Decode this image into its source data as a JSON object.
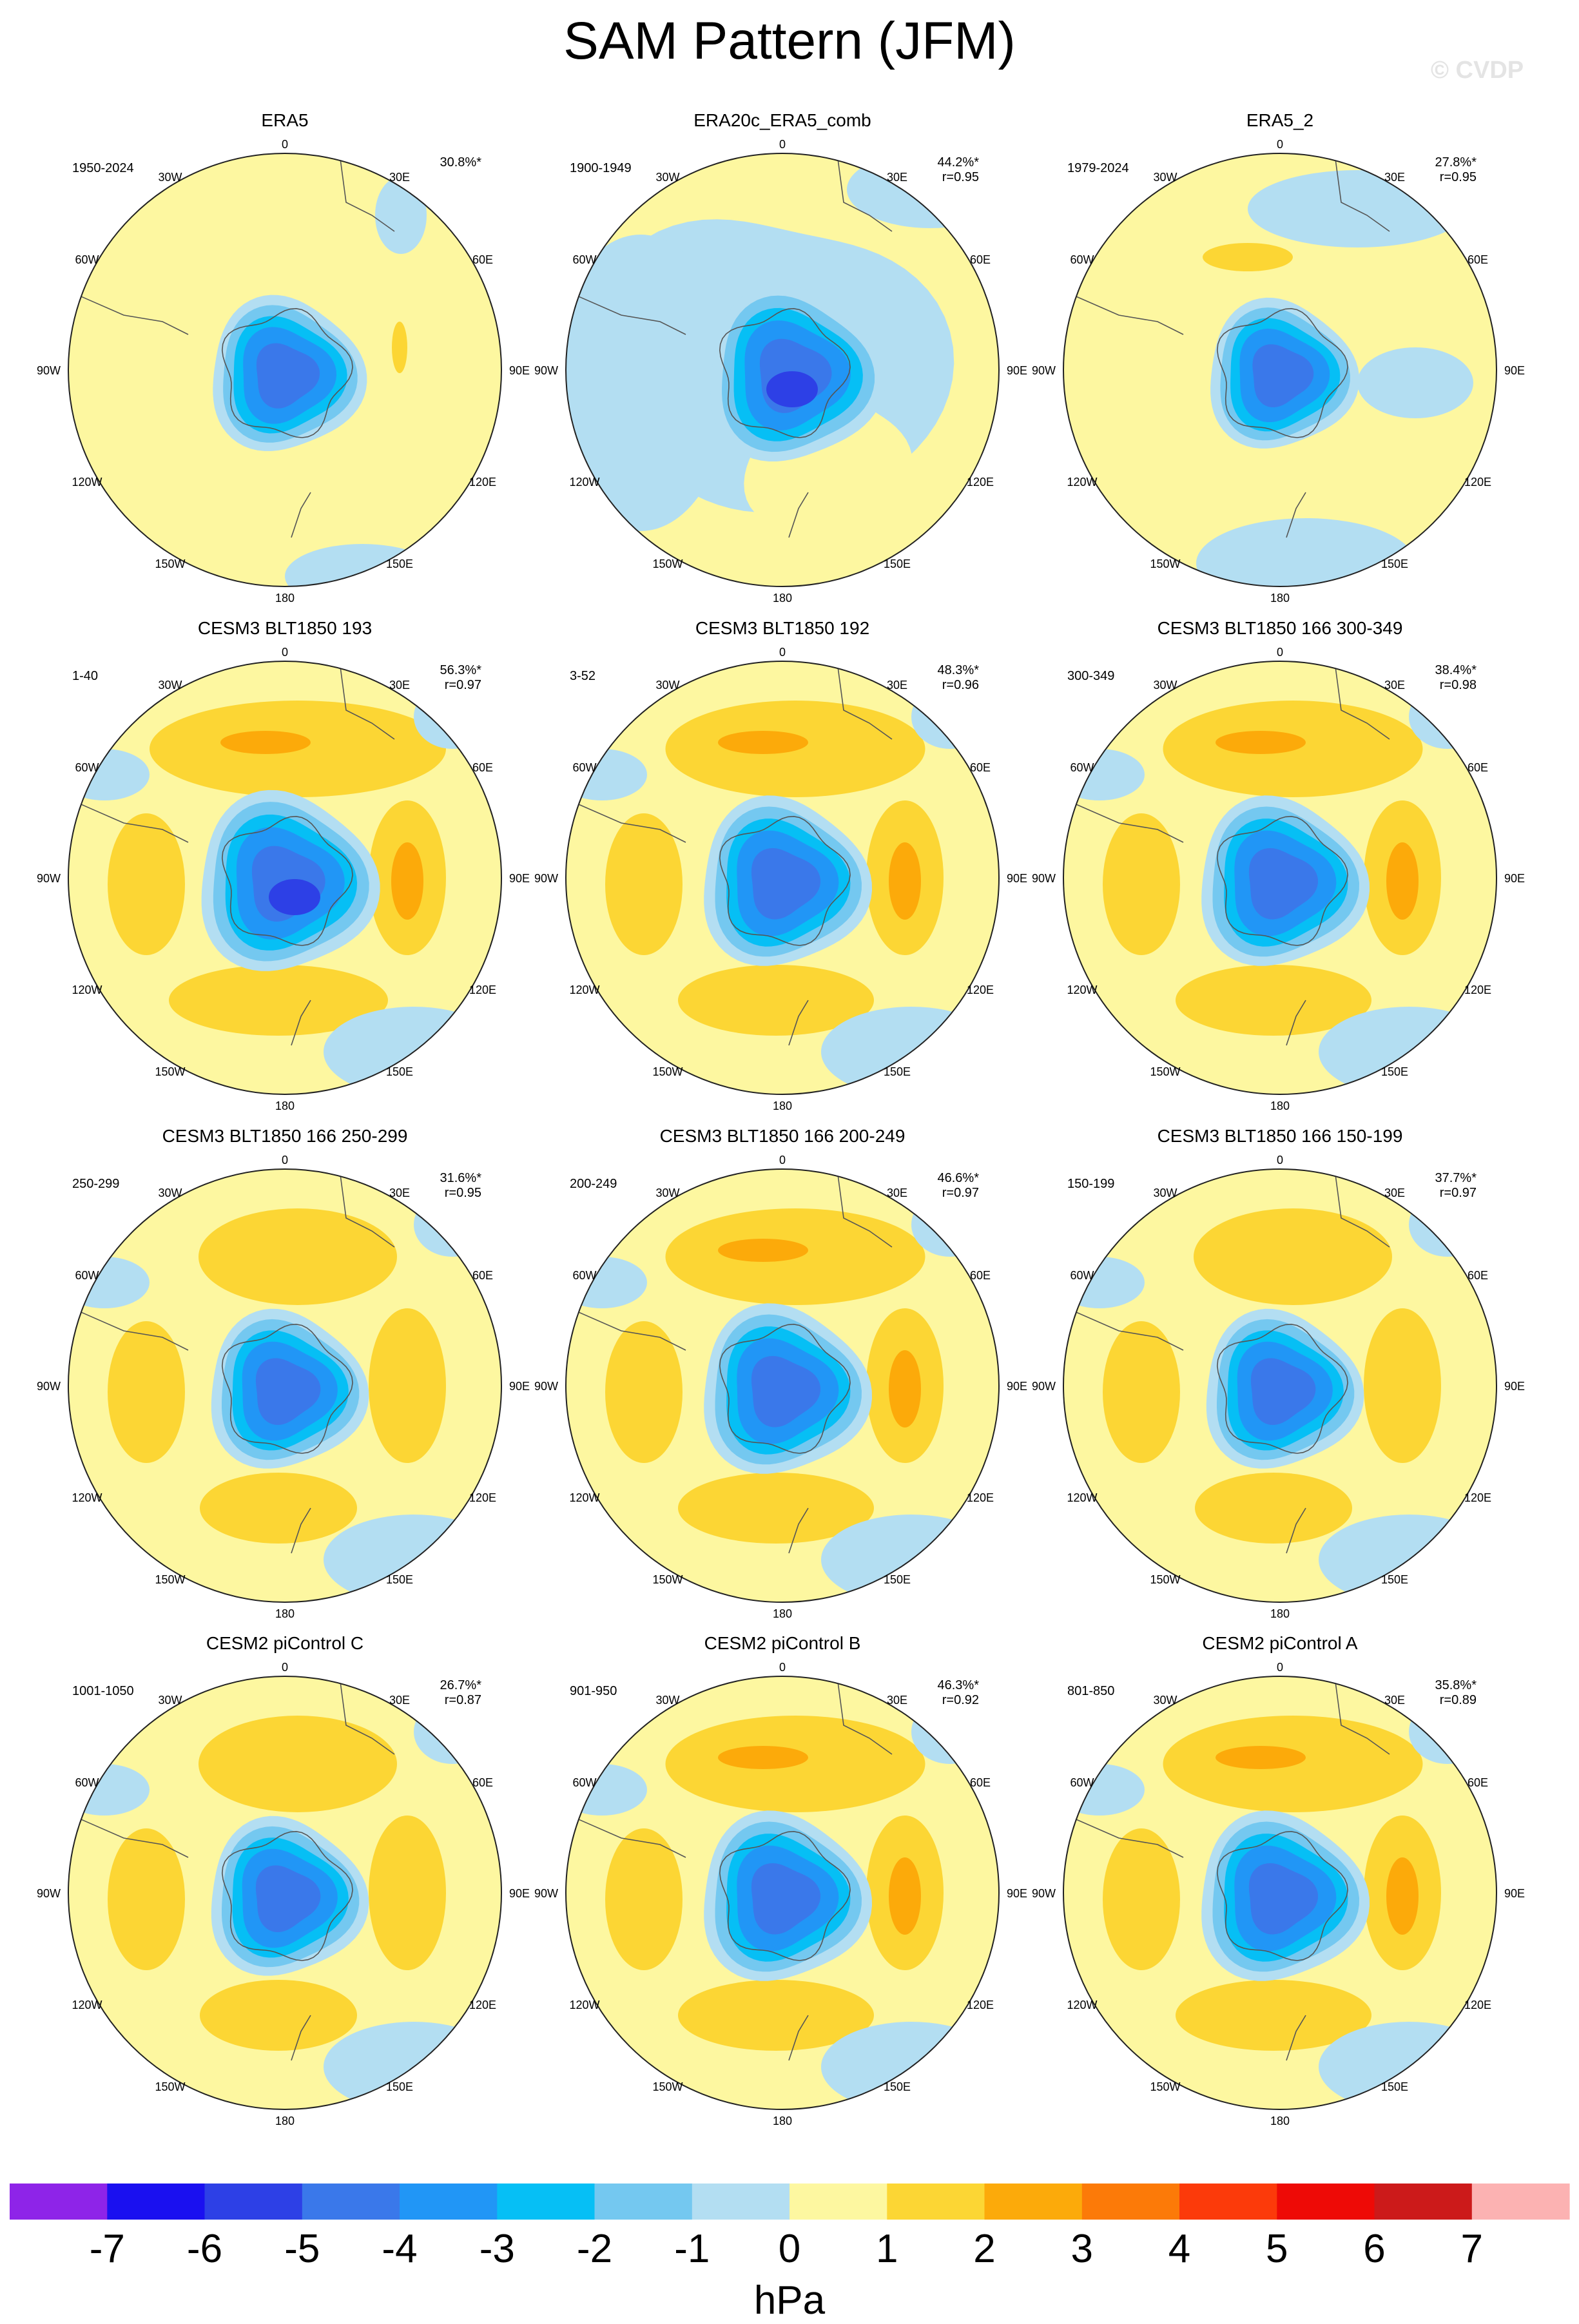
{
  "figure": {
    "title": "SAM Pattern (JFM)",
    "watermark": "© CVDP",
    "units": "hPa"
  },
  "lon_labels": {
    "top": "0",
    "t_left": "30W",
    "t_right": "30E",
    "ul": "60W",
    "ur": "60E",
    "left": "90W",
    "right": "90E",
    "ll": "120W",
    "lr": "120E",
    "b_left": "150W",
    "b_right": "150E",
    "bottom": "180"
  },
  "panels": [
    {
      "title": "ERA5",
      "years": "1950-2024",
      "pct": "30.8%*",
      "r": "",
      "pattern": "era5"
    },
    {
      "title": "ERA20c_ERA5_comb",
      "years": "1900-1949",
      "pct": "44.2%*",
      "r": "r=0.95",
      "pattern": "era20c"
    },
    {
      "title": "ERA5_2",
      "years": "1979-2024",
      "pct": "27.8%*",
      "r": "r=0.95",
      "pattern": "era5_2"
    },
    {
      "title": "CESM3 BLT1850 193",
      "years": "1-40",
      "pct": "56.3%*",
      "r": "r=0.97",
      "pattern": "strong"
    },
    {
      "title": "CESM3 BLT1850 192",
      "years": "3-52",
      "pct": "48.3%*",
      "r": "r=0.96",
      "pattern": "ring"
    },
    {
      "title": "CESM3 BLT1850 166 300-349",
      "years": "300-349",
      "pct": "38.4%*",
      "r": "r=0.98",
      "pattern": "ring"
    },
    {
      "title": "CESM3 BLT1850 166 250-299",
      "years": "250-299",
      "pct": "31.6%*",
      "r": "r=0.95",
      "pattern": "weak"
    },
    {
      "title": "CESM3 BLT1850 166 200-249",
      "years": "200-249",
      "pct": "46.6%*",
      "r": "r=0.97",
      "pattern": "ring"
    },
    {
      "title": "CESM3 BLT1850 166 150-199",
      "years": "150-199",
      "pct": "37.7%*",
      "r": "r=0.97",
      "pattern": "weak"
    },
    {
      "title": "CESM2 piControl C",
      "years": "1001-1050",
      "pct": "26.7%*",
      "r": "r=0.87",
      "pattern": "weak"
    },
    {
      "title": "CESM2 piControl B",
      "years": "901-950",
      "pct": "46.3%*",
      "r": "r=0.92",
      "pattern": "ring"
    },
    {
      "title": "CESM2 piControl A",
      "years": "801-850",
      "pct": "35.8%*",
      "r": "r=0.89",
      "pattern": "ring"
    }
  ],
  "colorbar": {
    "colors": [
      "#8e24e8",
      "#1a10f0",
      "#2d40e6",
      "#3a78ea",
      "#2196f6",
      "#06bff5",
      "#74c8f0",
      "#b3def2",
      "#fdf7a0",
      "#fcd634",
      "#fcaa0a",
      "#fc7a08",
      "#fc3a0a",
      "#ee0a06",
      "#cc1a1a",
      "#fcb2b2"
    ],
    "labels": [
      "-7",
      "-6",
      "-5",
      "-4",
      "-3",
      "-2",
      "-1",
      "0",
      "1",
      "2",
      "3",
      "4",
      "5",
      "6",
      "7"
    ]
  }
}
